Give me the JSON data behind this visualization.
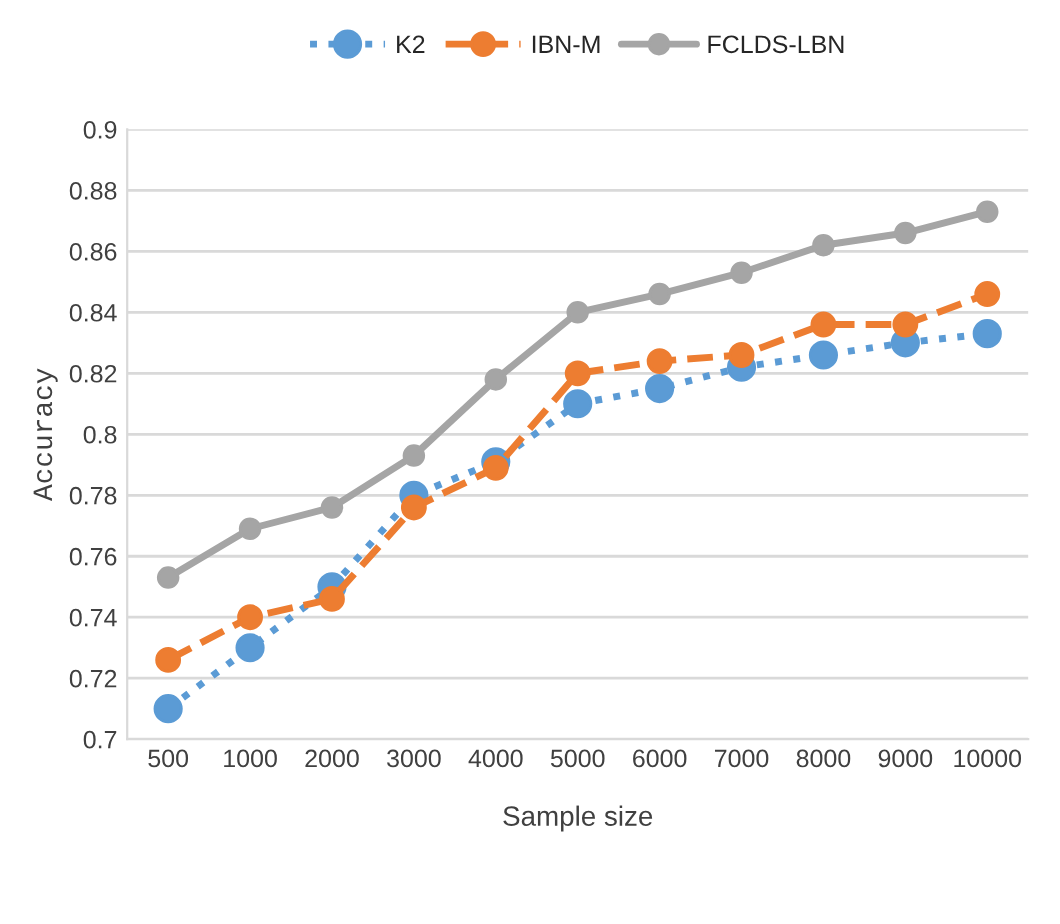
{
  "chart_data": {
    "type": "line",
    "xlabel": "Sample size",
    "ylabel": "Accuracy",
    "categories": [
      "500",
      "1000",
      "2000",
      "3000",
      "4000",
      "5000",
      "6000",
      "7000",
      "8000",
      "9000",
      "10000"
    ],
    "series": [
      {
        "name": "K2",
        "color": "#5b9bd5",
        "line_style": "dotted",
        "values": [
          0.71,
          0.73,
          0.75,
          0.78,
          0.791,
          0.81,
          0.815,
          0.822,
          0.826,
          0.83,
          0.833
        ]
      },
      {
        "name": "IBN-M",
        "color": "#ed7d31",
        "line_style": "dashed",
        "values": [
          0.726,
          0.74,
          0.746,
          0.776,
          0.789,
          0.82,
          0.824,
          0.826,
          0.836,
          0.836,
          0.846
        ]
      },
      {
        "name": "FCLDS-LBN",
        "color": "#a5a5a5",
        "line_style": "solid",
        "values": [
          0.753,
          0.769,
          0.776,
          0.793,
          0.818,
          0.84,
          0.846,
          0.853,
          0.862,
          0.866,
          0.873
        ]
      }
    ],
    "ylim": [
      0.7,
      0.9
    ],
    "yticks": [
      0.7,
      0.72,
      0.74,
      0.76,
      0.78,
      0.8,
      0.82,
      0.84,
      0.86,
      0.88,
      0.9
    ],
    "grid": "y",
    "legend": "top",
    "marker": "circle"
  }
}
